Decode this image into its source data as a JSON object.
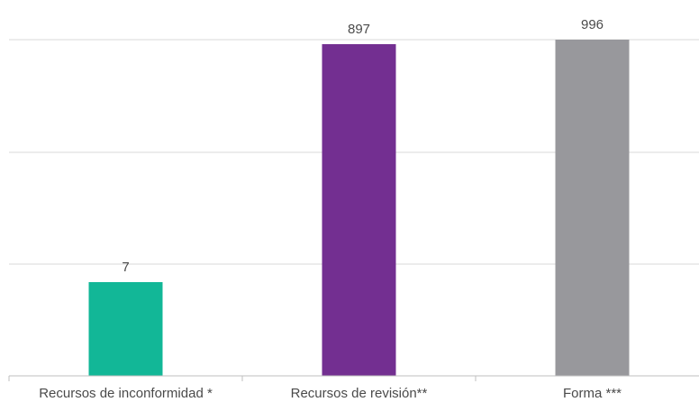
{
  "chart_data": {
    "type": "bar",
    "categories": [
      "Recursos de inconformidad *",
      "Recursos de revisión**",
      "Forma ***"
    ],
    "values": [
      7,
      897,
      996
    ],
    "data_labels": [
      "7",
      "897",
      "996"
    ],
    "bar_colors": [
      "#12b797",
      "#732f91",
      "#98989c"
    ],
    "title": "",
    "xlabel": "",
    "ylabel": "",
    "grid": true,
    "legend": "none"
  }
}
